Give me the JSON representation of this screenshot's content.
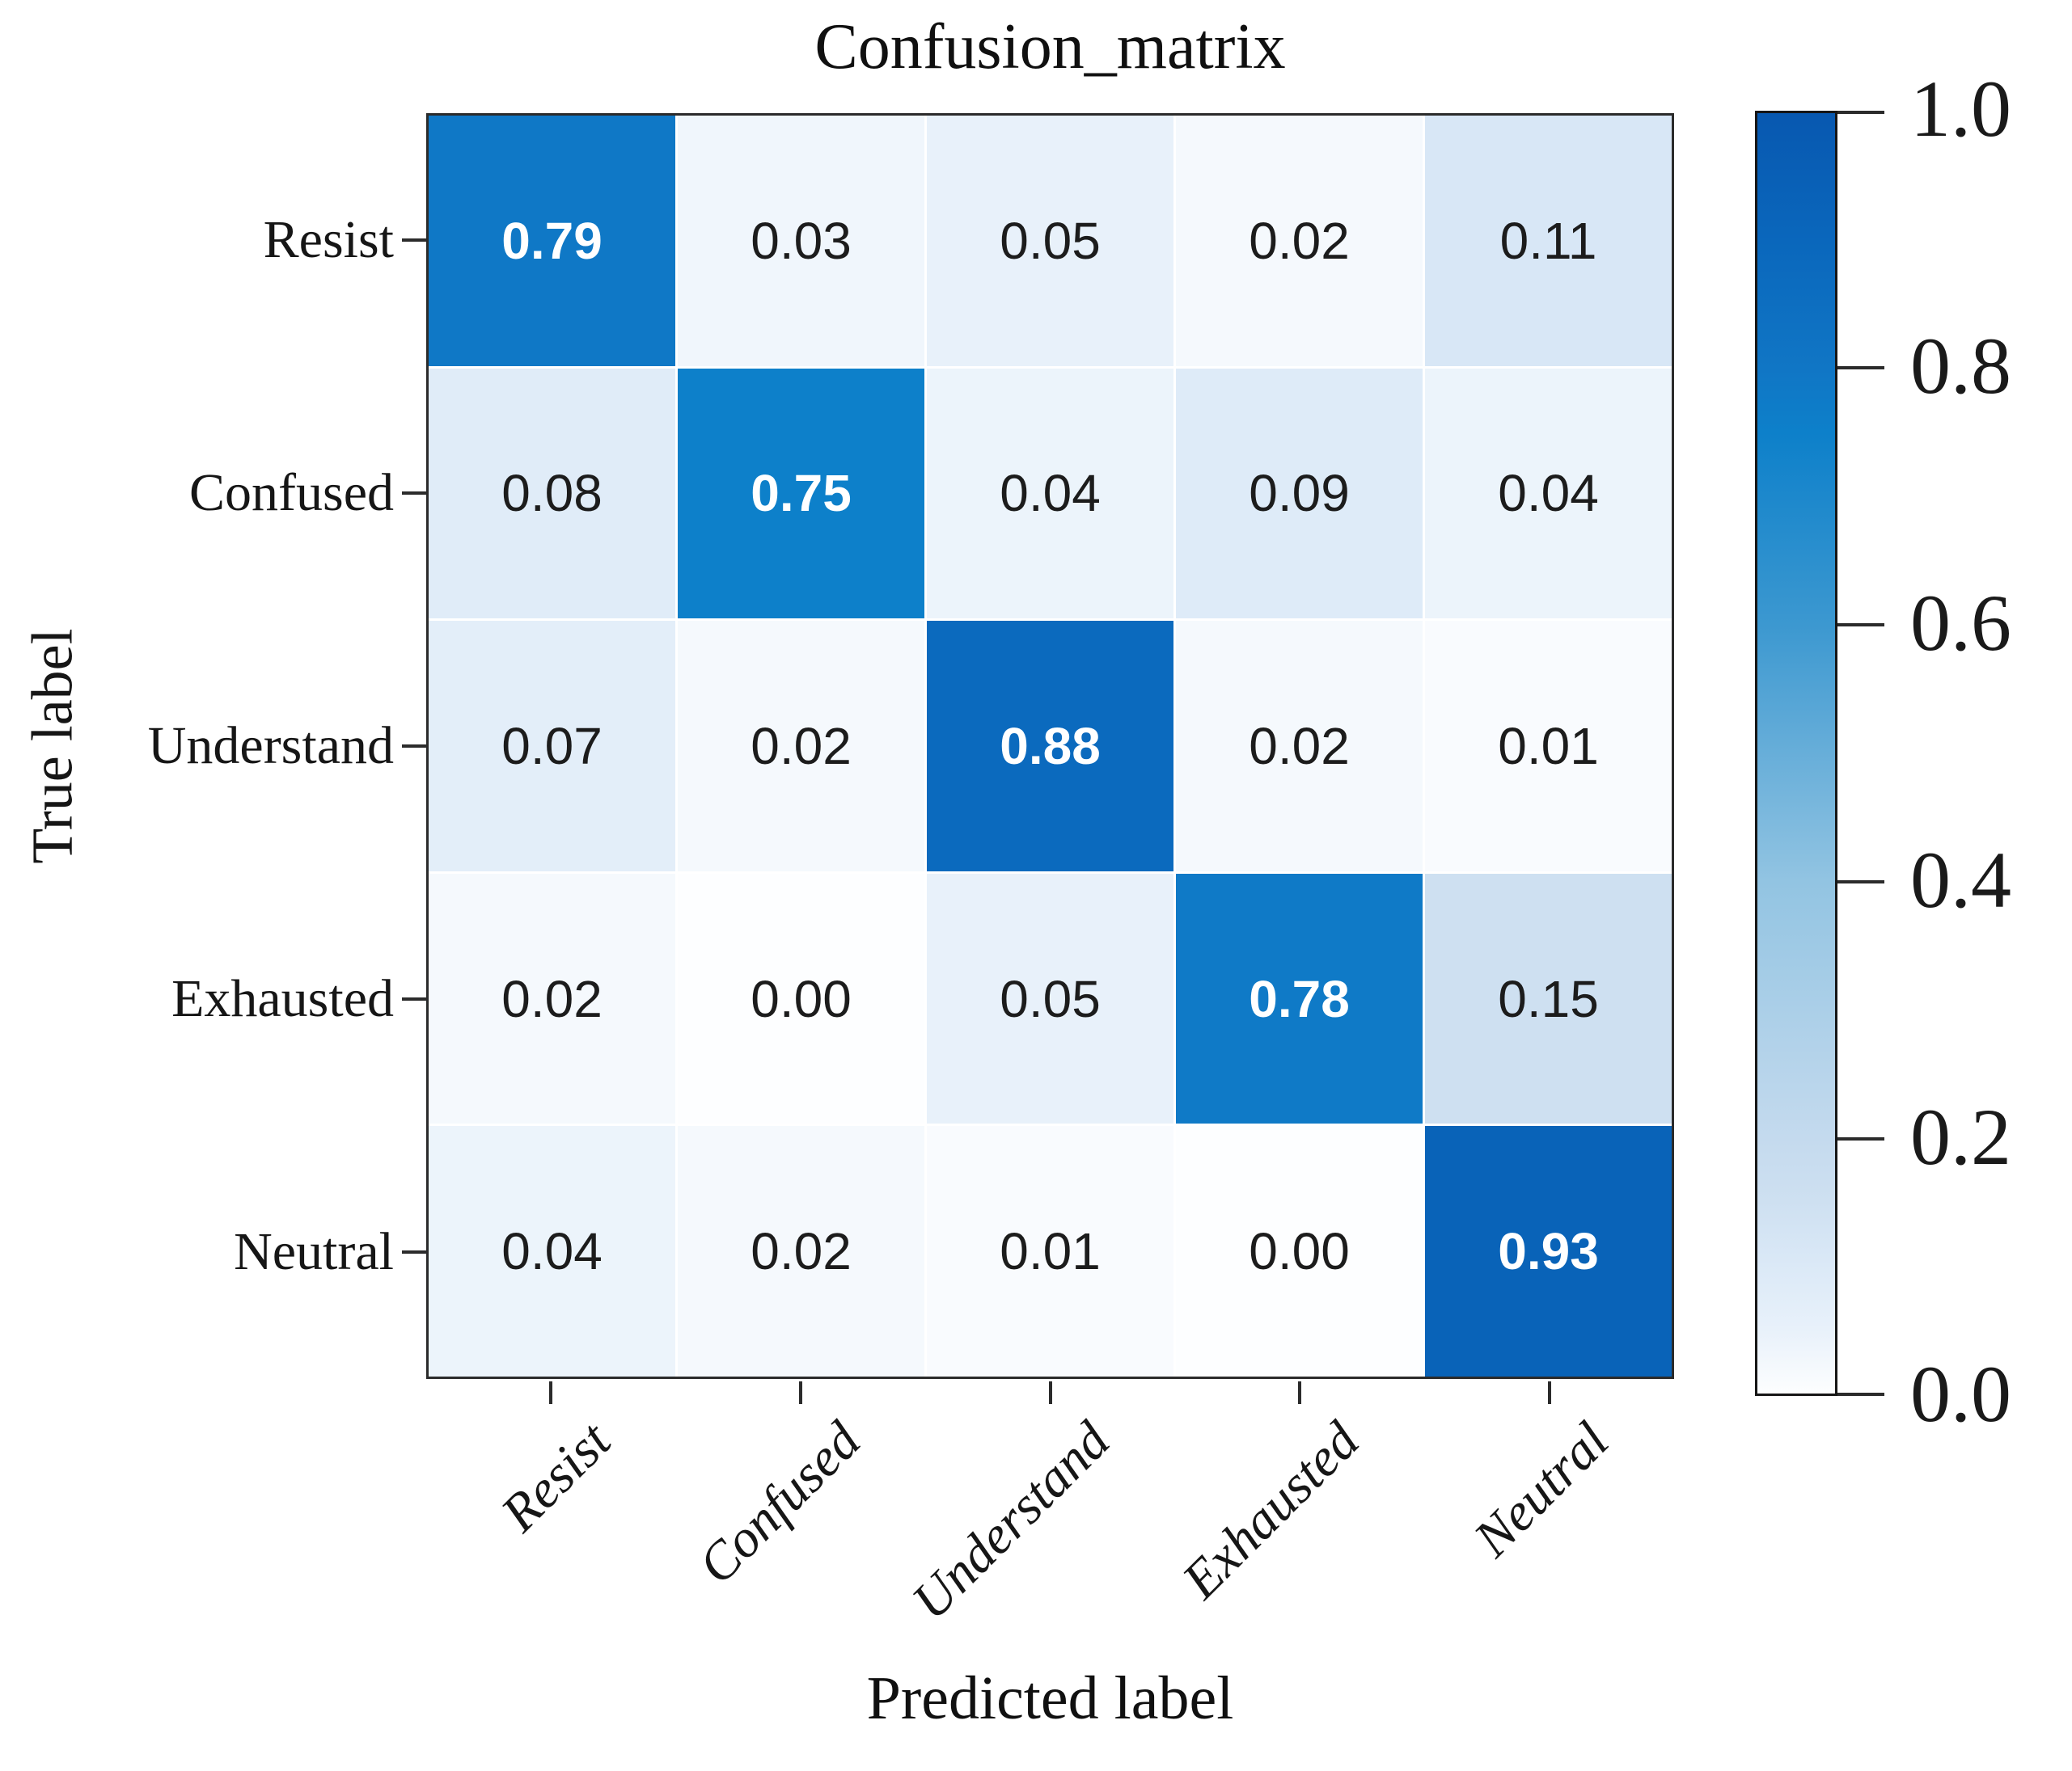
{
  "chart_data": {
    "type": "heatmap",
    "title": "Confusion_matrix",
    "xlabel": "Predicted label",
    "ylabel": "True label",
    "x_categories": [
      "Resist",
      "Confused",
      "Understand",
      "Exhausted",
      "Neutral"
    ],
    "y_categories": [
      "Resist",
      "Confused",
      "Understand",
      "Exhausted",
      "Neutral"
    ],
    "matrix": [
      [
        0.79,
        0.03,
        0.05,
        0.02,
        0.11
      ],
      [
        0.08,
        0.75,
        0.04,
        0.09,
        0.04
      ],
      [
        0.07,
        0.02,
        0.88,
        0.02,
        0.01
      ],
      [
        0.02,
        0.0,
        0.05,
        0.78,
        0.15
      ],
      [
        0.04,
        0.02,
        0.01,
        0.0,
        0.93
      ]
    ],
    "value_range": [
      0.0,
      1.0
    ],
    "colormap": "Blues",
    "colorbar_ticks": [
      "1.0",
      "0.8",
      "0.6",
      "0.4",
      "0.2",
      "0.0"
    ],
    "legend_position": "right",
    "grid": false
  },
  "colors": {
    "background": "#ffffff",
    "border": "#2b2b2b",
    "text_on_dark": "#ffffff",
    "text_on_light": "#1c1c1c",
    "colormap_anchors": [
      [
        0.0,
        253,
        254,
        255
      ],
      [
        0.05,
        232,
        241,
        250
      ],
      [
        0.1,
        219,
        233,
        247
      ],
      [
        0.15,
        206,
        224,
        241
      ],
      [
        0.2,
        196,
        218,
        238
      ],
      [
        0.4,
        146,
        196,
        226
      ],
      [
        0.6,
        60,
        152,
        208
      ],
      [
        0.75,
        13,
        128,
        202
      ],
      [
        0.8,
        16,
        118,
        197
      ],
      [
        0.9,
        10,
        103,
        188
      ],
      [
        1.0,
        8,
        88,
        176
      ]
    ],
    "white_text_threshold": 0.5
  }
}
